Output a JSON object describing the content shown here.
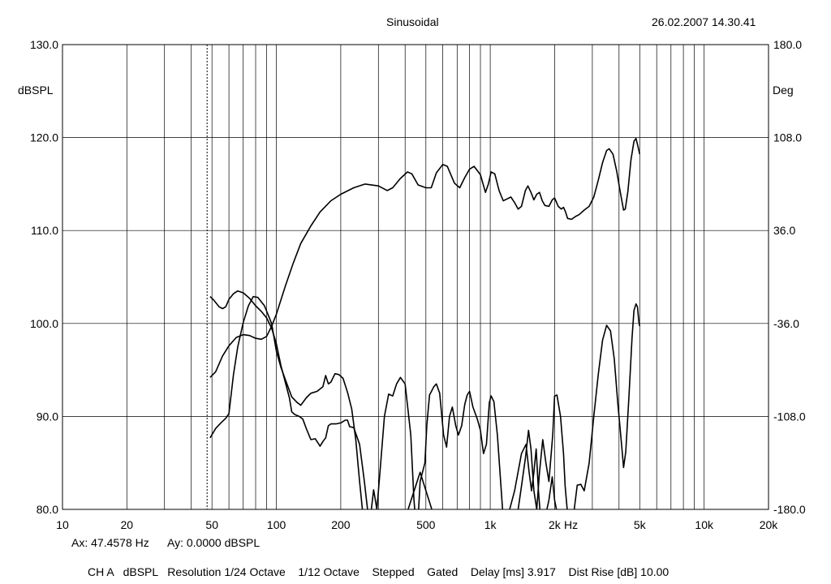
{
  "header": {
    "title": "Sinusoidal",
    "timestamp": "26.02.2007 14.30.41"
  },
  "cursor_readout": {
    "ax": "Ax: 47.4578 Hz",
    "ay": "Ay: 0.0000 dBSPL"
  },
  "footer": {
    "status": "CH A   dBSPL   Resolution 1/24 Octave    1/12 Octave    Stepped    Gated    Delay [ms] 3.917    Dist Rise [dB] 10.00"
  },
  "chart_data": {
    "type": "line",
    "x_scale": "log",
    "xlim": [
      10,
      20000
    ],
    "ylim": [
      80,
      130
    ],
    "ylim_right": [
      -180,
      180
    ],
    "ylabel": "dBSPL",
    "ylabel_right": "Deg",
    "x_unit_label": "Hz",
    "grid": true,
    "cursor_x": 47.4578,
    "x_ticks": [
      {
        "value": 10,
        "label": "10"
      },
      {
        "value": 20,
        "label": "20"
      },
      {
        "value": 50,
        "label": "50"
      },
      {
        "value": 100,
        "label": "100"
      },
      {
        "value": 200,
        "label": "200"
      },
      {
        "value": 500,
        "label": "500"
      },
      {
        "value": 1000,
        "label": "1k"
      },
      {
        "value": 2000,
        "label": "2k"
      },
      {
        "value": 5000,
        "label": "5k"
      },
      {
        "value": 10000,
        "label": "10k"
      },
      {
        "value": 20000,
        "label": "20k"
      }
    ],
    "y_ticks_left": [
      {
        "value": 130,
        "label": "130.0"
      },
      {
        "value": 120,
        "label": "120.0"
      },
      {
        "value": 110,
        "label": "110.0"
      },
      {
        "value": 100,
        "label": "100.0"
      },
      {
        "value": 90,
        "label": "90.0"
      },
      {
        "value": 80,
        "label": "80.0"
      }
    ],
    "y_ticks_right": [
      {
        "value": 180,
        "label": "180.0"
      },
      {
        "value": 108,
        "label": "108.0"
      },
      {
        "value": 36,
        "label": "36.0"
      },
      {
        "value": -36,
        "label": "-36.0"
      },
      {
        "value": -108,
        "label": "-108.0"
      },
      {
        "value": -180,
        "label": "-180.0"
      }
    ],
    "series": [
      {
        "axis": "left",
        "points": [
          [
            49,
            94.2
          ],
          [
            52,
            94.8
          ],
          [
            56,
            96.5
          ],
          [
            60,
            97.6
          ],
          [
            65,
            98.5
          ],
          [
            70,
            98.8
          ],
          [
            75,
            98.7
          ],
          [
            80,
            98.4
          ],
          [
            85,
            98.3
          ],
          [
            90,
            98.6
          ],
          [
            95,
            99.7
          ],
          [
            100,
            101
          ],
          [
            110,
            104
          ],
          [
            120,
            106.5
          ],
          [
            130,
            108.6
          ],
          [
            145,
            110.5
          ],
          [
            160,
            112
          ],
          [
            180,
            113.2
          ],
          [
            200,
            113.9
          ],
          [
            230,
            114.6
          ],
          [
            260,
            115
          ],
          [
            300,
            114.8
          ],
          [
            330,
            114.3
          ],
          [
            350,
            114.6
          ],
          [
            380,
            115.6
          ],
          [
            410,
            116.3
          ],
          [
            430,
            116.1
          ],
          [
            460,
            114.9
          ],
          [
            500,
            114.6
          ],
          [
            530,
            114.6
          ],
          [
            560,
            116.2
          ],
          [
            600,
            117.1
          ],
          [
            630,
            116.9
          ],
          [
            680,
            115.1
          ],
          [
            720,
            114.6
          ],
          [
            760,
            115.7
          ],
          [
            800,
            116.6
          ],
          [
            840,
            116.9
          ],
          [
            900,
            116
          ],
          [
            950,
            114.1
          ],
          [
            980,
            115
          ],
          [
            1010,
            116.3
          ],
          [
            1050,
            116.1
          ],
          [
            1100,
            114.3
          ],
          [
            1150,
            113.2
          ],
          [
            1200,
            113.4
          ],
          [
            1250,
            113.6
          ],
          [
            1300,
            113
          ],
          [
            1350,
            112.3
          ],
          [
            1400,
            112.6
          ],
          [
            1460,
            114.3
          ],
          [
            1500,
            114.8
          ],
          [
            1550,
            114.1
          ],
          [
            1600,
            113.3
          ],
          [
            1650,
            113.9
          ],
          [
            1700,
            114.1
          ],
          [
            1750,
            113.2
          ],
          [
            1800,
            112.7
          ],
          [
            1880,
            112.6
          ],
          [
            1950,
            113.3
          ],
          [
            2000,
            113.5
          ],
          [
            2080,
            112.6
          ],
          [
            2150,
            112.3
          ],
          [
            2200,
            112.5
          ],
          [
            2250,
            112
          ],
          [
            2300,
            111.3
          ],
          [
            2400,
            111.2
          ],
          [
            2500,
            111.5
          ],
          [
            2600,
            111.7
          ],
          [
            2750,
            112.2
          ],
          [
            2900,
            112.6
          ],
          [
            3050,
            113.6
          ],
          [
            3200,
            115.4
          ],
          [
            3350,
            117.3
          ],
          [
            3500,
            118.6
          ],
          [
            3600,
            118.8
          ],
          [
            3750,
            118.2
          ],
          [
            3900,
            116.4
          ],
          [
            4050,
            114.2
          ],
          [
            4200,
            112.2
          ],
          [
            4280,
            112.3
          ],
          [
            4400,
            114.2
          ],
          [
            4550,
            117.6
          ],
          [
            4700,
            119.6
          ],
          [
            4800,
            119.9
          ],
          [
            4900,
            119.1
          ],
          [
            5000,
            118.2
          ]
        ]
      },
      {
        "axis": "left",
        "points": [
          [
            49,
            87.7
          ],
          [
            52,
            88.7
          ],
          [
            55,
            89.3
          ],
          [
            58,
            89.8
          ],
          [
            60,
            90.3
          ],
          [
            63,
            94.5
          ],
          [
            66,
            97.5
          ],
          [
            70,
            100.1
          ],
          [
            74,
            101.9
          ],
          [
            78,
            102.9
          ],
          [
            82,
            102.8
          ],
          [
            88,
            101.9
          ],
          [
            95,
            100
          ],
          [
            100,
            97
          ],
          [
            105,
            95.3
          ],
          [
            110,
            94
          ],
          [
            118,
            92.1
          ],
          [
            125,
            91.5
          ],
          [
            130,
            91.2
          ],
          [
            138,
            92
          ],
          [
            145,
            92.5
          ],
          [
            155,
            92.7
          ],
          [
            165,
            93.2
          ],
          [
            170,
            94.4
          ],
          [
            175,
            93.5
          ],
          [
            180,
            93.7
          ],
          [
            188,
            94.6
          ],
          [
            196,
            94.5
          ],
          [
            205,
            94.1
          ],
          [
            215,
            92.6
          ],
          [
            225,
            90.8
          ],
          [
            235,
            87.5
          ],
          [
            245,
            83
          ],
          [
            255,
            79
          ],
          [
            265,
            76
          ],
          [
            278,
            80
          ],
          [
            285,
            82.1
          ],
          [
            295,
            80
          ],
          [
            305,
            84
          ],
          [
            320,
            90
          ],
          [
            335,
            92.4
          ],
          [
            350,
            92.2
          ],
          [
            365,
            93.5
          ],
          [
            380,
            94.2
          ],
          [
            400,
            93.5
          ],
          [
            425,
            88
          ],
          [
            440,
            81
          ],
          [
            455,
            77
          ],
          [
            470,
            83
          ],
          [
            495,
            85
          ],
          [
            505,
            89
          ],
          [
            520,
            92.3
          ],
          [
            545,
            93.2
          ],
          [
            560,
            93.5
          ],
          [
            580,
            92.5
          ],
          [
            605,
            88
          ],
          [
            625,
            86.7
          ],
          [
            645,
            90
          ],
          [
            665,
            91
          ],
          [
            690,
            89
          ],
          [
            710,
            88
          ],
          [
            735,
            89
          ],
          [
            760,
            91.3
          ],
          [
            780,
            92.3
          ],
          [
            800,
            92.7
          ],
          [
            830,
            91
          ],
          [
            870,
            89.7
          ],
          [
            900,
            88.5
          ],
          [
            930,
            86
          ],
          [
            960,
            87
          ],
          [
            990,
            91.5
          ],
          [
            1010,
            92.2
          ],
          [
            1040,
            91.6
          ],
          [
            1080,
            88
          ],
          [
            1110,
            84
          ],
          [
            1150,
            79
          ],
          [
            1300,
            77
          ],
          [
            1350,
            80
          ],
          [
            1400,
            82.5
          ],
          [
            1460,
            85.5
          ],
          [
            1510,
            88.5
          ],
          [
            1550,
            86.5
          ],
          [
            1600,
            82
          ],
          [
            1650,
            80
          ],
          [
            1700,
            84
          ],
          [
            1760,
            87.5
          ],
          [
            1820,
            85
          ],
          [
            1880,
            83
          ],
          [
            1960,
            88
          ],
          [
            2000,
            92.2
          ],
          [
            2050,
            92.3
          ],
          [
            2130,
            90
          ],
          [
            2200,
            86
          ],
          [
            2240,
            82.5
          ],
          [
            2290,
            80
          ],
          [
            2370,
            78
          ],
          [
            2470,
            80
          ],
          [
            2550,
            82.6
          ],
          [
            2650,
            82.7
          ],
          [
            2750,
            82
          ],
          [
            2900,
            85
          ],
          [
            3050,
            90
          ],
          [
            3200,
            94.5
          ],
          [
            3350,
            98.2
          ],
          [
            3500,
            99.8
          ],
          [
            3650,
            99.2
          ],
          [
            3800,
            96.2
          ],
          [
            3950,
            91.4
          ],
          [
            4100,
            87.3
          ],
          [
            4200,
            84.5
          ],
          [
            4300,
            86.2
          ],
          [
            4450,
            92.1
          ],
          [
            4600,
            98.4
          ],
          [
            4700,
            101.4
          ],
          [
            4800,
            102.1
          ],
          [
            4880,
            101.8
          ],
          [
            4950,
            100.2
          ],
          [
            5000,
            99.7
          ]
        ]
      },
      {
        "axis": "left",
        "points": [
          [
            49,
            102.9
          ],
          [
            51,
            102.5
          ],
          [
            54,
            101.8
          ],
          [
            56,
            101.6
          ],
          [
            58,
            101.8
          ],
          [
            60,
            102.6
          ],
          [
            63,
            103.2
          ],
          [
            66,
            103.5
          ],
          [
            70,
            103.3
          ],
          [
            75,
            102.7
          ],
          [
            80,
            101.9
          ],
          [
            85,
            101.3
          ],
          [
            90,
            100.6
          ],
          [
            95,
            99.5
          ],
          [
            100,
            97.8
          ],
          [
            105,
            95.5
          ],
          [
            110,
            93.7
          ],
          [
            115,
            92
          ],
          [
            118,
            90.5
          ],
          [
            122,
            90.2
          ],
          [
            128,
            90
          ],
          [
            133,
            89.7
          ],
          [
            138,
            88.7
          ],
          [
            145,
            87.5
          ],
          [
            152,
            87.6
          ],
          [
            160,
            86.8
          ],
          [
            165,
            87.3
          ],
          [
            170,
            87.7
          ],
          [
            175,
            89
          ],
          [
            180,
            89.2
          ],
          [
            190,
            89.2
          ],
          [
            200,
            89.3
          ],
          [
            210,
            89.6
          ],
          [
            215,
            89.6
          ],
          [
            220,
            88.9
          ],
          [
            230,
            88.8
          ],
          [
            245,
            87
          ],
          [
            258,
            83
          ],
          [
            270,
            79
          ],
          [
            400,
            79
          ],
          [
            470,
            84
          ],
          [
            550,
            79
          ],
          [
            1000,
            79
          ],
          [
            1200,
            79
          ],
          [
            1300,
            82
          ],
          [
            1400,
            86
          ],
          [
            1470,
            87
          ],
          [
            1520,
            84
          ],
          [
            1560,
            82
          ],
          [
            1600,
            84
          ],
          [
            1640,
            86.5
          ],
          [
            1680,
            82
          ],
          [
            1720,
            79
          ],
          [
            1800,
            79
          ],
          [
            1880,
            81
          ],
          [
            1950,
            83.5
          ],
          [
            2000,
            81
          ],
          [
            2080,
            79
          ],
          [
            2300,
            79
          ],
          [
            5000,
            79
          ]
        ]
      }
    ]
  }
}
